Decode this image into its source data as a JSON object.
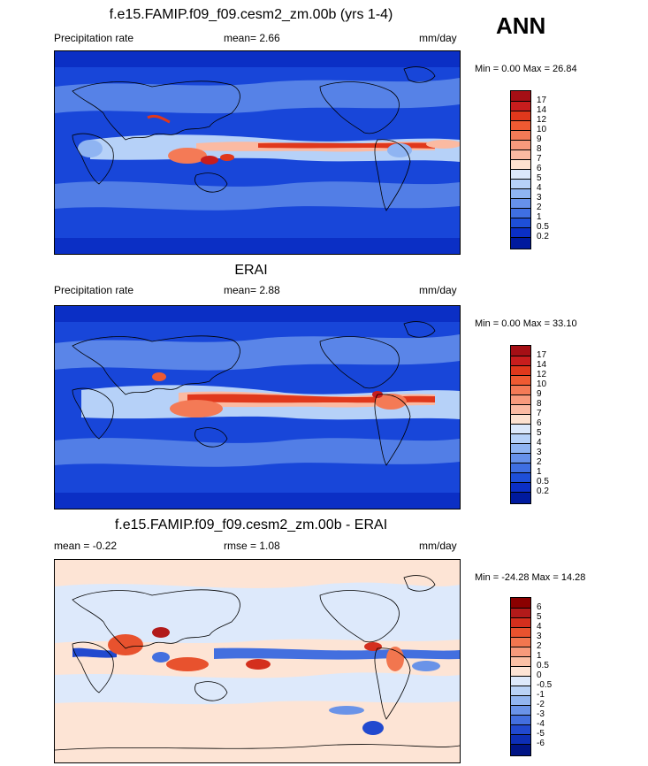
{
  "season": "ANN",
  "panels": [
    {
      "title": "f.e15.FAMIP.f09_f09.cesm2_zm.00b (yrs 1-4)",
      "left_label": "Precipitation rate",
      "center_label": "mean=   2.66",
      "units": "mm/day",
      "minmax": "Min =   0.00 Max =  26.84",
      "levels": [
        "17",
        "14",
        "12",
        "10",
        "9",
        "8",
        "7",
        "6",
        "5",
        "4",
        "3",
        "2",
        "1",
        "0.5",
        "0.2"
      ],
      "colors": [
        "#a50f15",
        "#c81d1d",
        "#e0381c",
        "#ef5a32",
        "#f47a56",
        "#f89a7c",
        "#fbbaa2",
        "#fde1cf",
        "#dbe8fb",
        "#b6d1f8",
        "#8fb4f2",
        "#6691ea",
        "#3f6fe2",
        "#1e4fd8",
        "#0b2fc5",
        "#001a9e"
      ]
    },
    {
      "title": "ERAI",
      "left_label": "Precipitation rate",
      "center_label": "mean=   2.88",
      "units": "mm/day",
      "minmax": "Min =   0.00 Max =  33.10",
      "levels": [
        "17",
        "14",
        "12",
        "10",
        "9",
        "8",
        "7",
        "6",
        "5",
        "4",
        "3",
        "2",
        "1",
        "0.5",
        "0.2"
      ],
      "colors": [
        "#a50f15",
        "#c81d1d",
        "#e0381c",
        "#ef5a32",
        "#f47a56",
        "#f89a7c",
        "#fbbaa2",
        "#fde1cf",
        "#dbe8fb",
        "#b6d1f8",
        "#8fb4f2",
        "#6691ea",
        "#3f6fe2",
        "#1e4fd8",
        "#0b2fc5",
        "#001a9e"
      ]
    },
    {
      "title": "f.e15.FAMIP.f09_f09.cesm2_zm.00b - ERAI",
      "left_label": "mean =  -0.22",
      "center_label": "rmse =   1.08",
      "units": "mm/day",
      "minmax": "Min = -24.28 Max =  14.28",
      "levels": [
        "6",
        "5",
        "4",
        "3",
        "2",
        "1",
        "0.5",
        "0",
        "-0.5",
        "-1",
        "-2",
        "-3",
        "-4",
        "-5",
        "-6"
      ],
      "colors": [
        "#8b0000",
        "#b21a1a",
        "#d42f1d",
        "#e8522e",
        "#f2764f",
        "#f79a7b",
        "#fbc0a5",
        "#fde4d5",
        "#dde9fb",
        "#b9d2f6",
        "#92b5f0",
        "#6a93e8",
        "#436fdf",
        "#2149cf",
        "#0d2eb5",
        "#001485"
      ]
    }
  ]
}
